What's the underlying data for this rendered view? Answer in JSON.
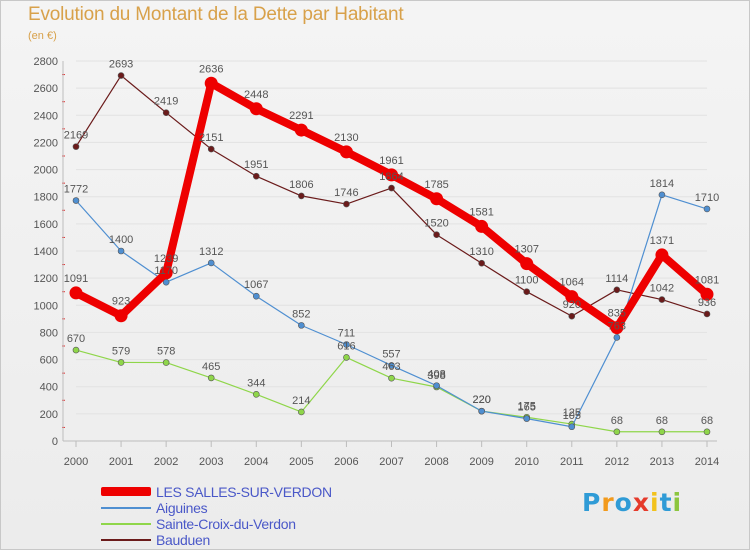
{
  "chart_data": {
    "type": "line",
    "title": "Evolution du Montant de la Dette par Habitant",
    "subtitle": "(en €)",
    "xlabel": "",
    "ylabel": "",
    "ylim": [
      0,
      2800
    ],
    "yticks": [
      0,
      200,
      400,
      600,
      800,
      1000,
      1200,
      1400,
      1600,
      1800,
      2000,
      2200,
      2400,
      2600,
      2800
    ],
    "categories": [
      "2000",
      "2001",
      "2002",
      "2003",
      "2004",
      "2005",
      "2006",
      "2007",
      "2008",
      "2009",
      "2010",
      "2011",
      "2012",
      "2013",
      "2014"
    ],
    "legend_position": "bottom-left",
    "series": [
      {
        "name": "LES SALLES-SUR-VERDON",
        "color": "#ee0000",
        "values": [
          1091,
          923,
          1239,
          2636,
          2448,
          2291,
          2130,
          1961,
          1785,
          1581,
          1307,
          1064,
          835,
          1371,
          1081
        ],
        "labels": [
          "1091",
          "923",
          "1239",
          "2636",
          "2448",
          "2291",
          "2130",
          "1961",
          "1785",
          "1581",
          "1307",
          "1064",
          "835",
          "1371",
          "1081"
        ]
      },
      {
        "name": "Aiguines",
        "color": "#4f8fd1",
        "values": [
          1772,
          1400,
          1170,
          1312,
          1067,
          852,
          711,
          557,
          408,
          220,
          165,
          105,
          763,
          1814,
          1710
        ],
        "labels": [
          "1772",
          "1400",
          "1170",
          "1312",
          "1067",
          "852",
          "711",
          "557",
          "408",
          "220",
          "165",
          "105",
          "763",
          "1814",
          "1710"
        ]
      },
      {
        "name": "Sainte-Croix-du-Verdon",
        "color": "#8fd64a",
        "values": [
          670,
          579,
          578,
          465,
          344,
          214,
          616,
          463,
          398,
          220,
          175,
          125,
          68,
          68,
          68
        ],
        "labels": [
          "670",
          "579",
          "578",
          "465",
          "344",
          "214",
          "616",
          "463",
          "398",
          "220",
          "175",
          "125",
          "68",
          "68",
          "68"
        ]
      },
      {
        "name": "Bauduen",
        "color": "#6b1b1b",
        "values": [
          2169,
          2693,
          2419,
          2151,
          1951,
          1806,
          1746,
          1864,
          1520,
          1310,
          1100,
          920,
          1114,
          1042,
          936
        ],
        "labels": [
          "2169",
          "2693",
          "2419",
          "2151",
          "1951",
          "1806",
          "1746",
          "1864",
          "1520",
          "1310",
          "1100",
          "920",
          "1114",
          "1042",
          "936"
        ]
      }
    ]
  },
  "legend": {
    "items": [
      {
        "label": "LES SALLES-SUR-VERDON",
        "color": "#ee0000"
      },
      {
        "label": "Aiguines",
        "color": "#4f8fd1"
      },
      {
        "label": "Sainte-Croix-du-Verdon",
        "color": "#8fd64a"
      },
      {
        "label": "Bauduen",
        "color": "#6b1b1b"
      }
    ]
  },
  "logo": {
    "letters": [
      "P",
      "r",
      "o",
      "x",
      "i",
      "t",
      "i"
    ],
    "colors": [
      "#2f9bd6",
      "#f29a1c",
      "#2f9bd6",
      "#e53a2b",
      "#f2c21c",
      "#2f9bd6",
      "#8cc63f"
    ]
  }
}
